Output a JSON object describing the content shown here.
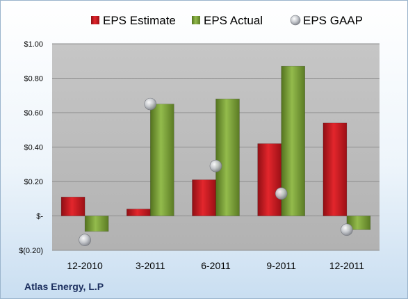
{
  "company_name": "Atlas Energy, L.P",
  "colors": {
    "estimate": "#c8191f",
    "actual": "#7da13a",
    "gaap": "#b9bcc2",
    "plot_background": "#bdbdbd",
    "gridline": "#8c8c8c",
    "text": "#000000",
    "company_text": "#1b2e5e"
  },
  "chart_data": {
    "type": "bar",
    "title": "",
    "xlabel": "",
    "ylabel": "",
    "categories": [
      "12-2010",
      "3-2011",
      "6-2011",
      "9-2011",
      "12-2011"
    ],
    "series": [
      {
        "name": "EPS Estimate",
        "type": "bar",
        "values": [
          0.11,
          0.04,
          0.21,
          0.42,
          0.54
        ]
      },
      {
        "name": "EPS Actual",
        "type": "bar",
        "values": [
          -0.09,
          0.65,
          0.68,
          0.87,
          -0.08
        ]
      },
      {
        "name": "EPS GAAP",
        "type": "scatter",
        "values": [
          -0.14,
          0.65,
          0.29,
          0.13,
          -0.08
        ]
      }
    ],
    "ylim": [
      -0.2,
      1.0
    ],
    "yticks": [
      -0.2,
      0,
      0.2,
      0.4,
      0.6,
      0.8,
      1.0
    ],
    "ytick_labels": [
      "$(0.20)",
      "$-",
      "$0.20",
      "$0.40",
      "$0.60",
      "$0.80",
      "$1.00"
    ],
    "grid": true,
    "legend": "top"
  }
}
